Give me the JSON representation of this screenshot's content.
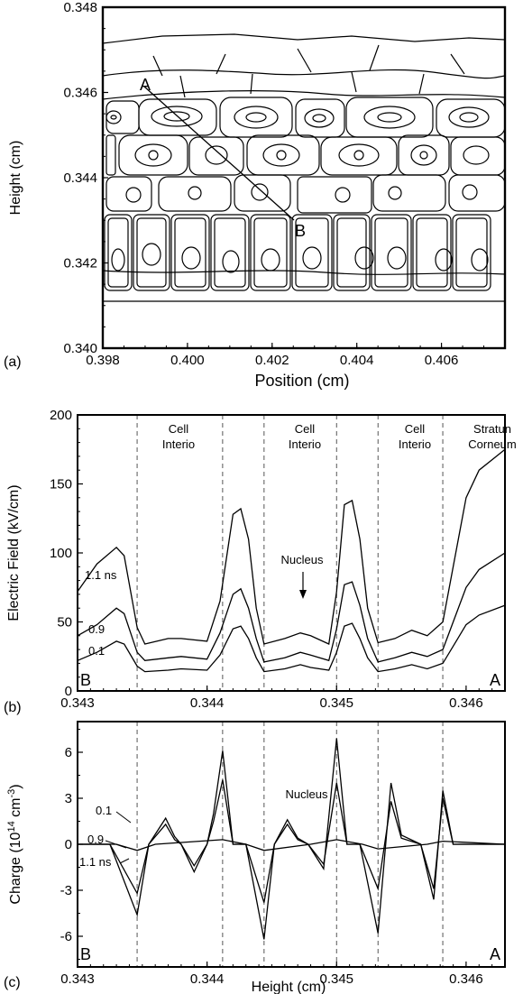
{
  "panel_a": {
    "label": "(a)",
    "xlabel": "Position (cm)",
    "ylabel": "Height (cm)",
    "xticks": [
      "0.398",
      "0.400",
      "0.402",
      "0.404",
      "0.406"
    ],
    "yticks": [
      "0.340",
      "0.342",
      "0.344",
      "0.346",
      "0.348"
    ],
    "point_a": "A",
    "point_b": "B"
  },
  "panel_b": {
    "label": "(b)",
    "ylabel": "Electric Field (kV/cm)",
    "xticks": [
      "0.343",
      "0.344",
      "0.345",
      "0.346"
    ],
    "yticks": [
      "0",
      "50",
      "100",
      "150",
      "200"
    ],
    "regions": [
      {
        "line1": "Cell",
        "line2": "Interio"
      },
      {
        "line1": "Cell",
        "line2": "Interio"
      },
      {
        "line1": "Cell",
        "line2": "Interio"
      },
      {
        "line1": "Stratun",
        "line2": "Corneum"
      }
    ],
    "series_labels": [
      "1.1 ns",
      "0.9",
      "0.1"
    ],
    "nucleus_label": "Nucleus",
    "corner_left": "B",
    "corner_right": "A"
  },
  "panel_c": {
    "label": "(c)",
    "xlabel": "Height (cm)",
    "ylabel": "Charge (10",
    "ylabel_sup1": "14",
    "ylabel_mid": " cm",
    "ylabel_sup2": "-3",
    "ylabel_end": ")",
    "xticks": [
      "0.343",
      "0.344",
      "0.345",
      "0.346"
    ],
    "yticks": [
      "-6",
      "-3",
      "0",
      "3",
      "6"
    ],
    "series_labels": [
      "0.1",
      "0.9",
      "1.1 ns"
    ],
    "nucleus_label": "Nucleus",
    "corner_left": "B",
    "corner_right": "A"
  },
  "chart_data": [
    {
      "type": "diagram",
      "panel": "a",
      "xlabel": "Position (cm)",
      "ylabel": "Height (cm)",
      "xlim": [
        0.398,
        0.4075
      ],
      "ylim": [
        0.34,
        0.348
      ],
      "line_AB": {
        "x": [
          0.3991,
          0.4025
        ],
        "y": [
          0.3458,
          0.3437
        ]
      }
    },
    {
      "type": "line",
      "panel": "b",
      "xlabel": "",
      "ylabel": "Electric Field (kV/cm)",
      "xlim": [
        0.343,
        0.3463
      ],
      "ylim": [
        0,
        200
      ],
      "boundaries": [
        0.34346,
        0.34412,
        0.34444,
        0.345,
        0.34532,
        0.34582
      ],
      "series": [
        {
          "name": "1.1 ns",
          "x": [
            0.343,
            0.34315,
            0.3433,
            0.34336,
            0.34346,
            0.34352,
            0.3437,
            0.3438,
            0.344,
            0.3441,
            0.3442,
            0.34426,
            0.34432,
            0.34438,
            0.34444,
            0.3446,
            0.34472,
            0.3448,
            0.34494,
            0.345,
            0.34506,
            0.34512,
            0.34518,
            0.34524,
            0.34532,
            0.34545,
            0.34558,
            0.3457,
            0.34582,
            0.346,
            0.3461,
            0.3463
          ],
          "y": [
            72,
            92,
            104,
            98,
            46,
            34,
            38,
            38,
            36,
            65,
            128,
            132,
            110,
            60,
            34,
            38,
            42,
            40,
            34,
            72,
            135,
            138,
            110,
            60,
            35,
            38,
            44,
            40,
            50,
            140,
            160,
            175
          ]
        },
        {
          "name": "0.9",
          "x": [
            0.343,
            0.34315,
            0.3433,
            0.34336,
            0.34346,
            0.34352,
            0.3437,
            0.3438,
            0.344,
            0.3441,
            0.3442,
            0.34426,
            0.34432,
            0.34438,
            0.34444,
            0.3446,
            0.34472,
            0.3448,
            0.34494,
            0.345,
            0.34506,
            0.34512,
            0.34518,
            0.34524,
            0.34532,
            0.34545,
            0.34558,
            0.3457,
            0.34582,
            0.346,
            0.3461,
            0.3463
          ],
          "y": [
            40,
            48,
            60,
            56,
            28,
            22,
            24,
            25,
            23,
            42,
            70,
            74,
            60,
            38,
            21,
            24,
            28,
            26,
            22,
            45,
            77,
            79,
            62,
            38,
            21,
            24,
            28,
            25,
            30,
            75,
            88,
            100
          ]
        },
        {
          "name": "0.1",
          "x": [
            0.343,
            0.34315,
            0.3433,
            0.34336,
            0.34346,
            0.34352,
            0.3437,
            0.3438,
            0.344,
            0.3441,
            0.3442,
            0.34426,
            0.34432,
            0.34438,
            0.34444,
            0.3446,
            0.34472,
            0.3448,
            0.34494,
            0.345,
            0.34506,
            0.34512,
            0.34518,
            0.34524,
            0.34532,
            0.34545,
            0.34558,
            0.3457,
            0.34582,
            0.346,
            0.3461,
            0.3463
          ],
          "y": [
            22,
            28,
            36,
            34,
            18,
            14,
            15,
            16,
            15,
            26,
            45,
            47,
            38,
            24,
            14,
            16,
            19,
            17,
            15,
            28,
            47,
            49,
            38,
            24,
            14,
            16,
            19,
            16,
            20,
            48,
            55,
            62
          ]
        }
      ]
    },
    {
      "type": "line",
      "panel": "c",
      "xlabel": "Height (cm)",
      "ylabel": "Charge (10^14 cm^-3)",
      "xlim": [
        0.343,
        0.3463
      ],
      "ylim": [
        -8,
        8
      ],
      "boundaries": [
        0.34346,
        0.34412,
        0.34444,
        0.345,
        0.34532,
        0.34582
      ],
      "series": [
        {
          "name": "0.1",
          "x": [
            0.343,
            0.3433,
            0.34346,
            0.3436,
            0.34412,
            0.3443,
            0.34444,
            0.3448,
            0.345,
            0.3452,
            0.34532,
            0.3457,
            0.34582,
            0.3463
          ],
          "y": [
            0,
            0,
            -0.4,
            0,
            0.3,
            0,
            -0.4,
            0,
            0.3,
            0,
            -0.3,
            0,
            0.2,
            0
          ]
        },
        {
          "name": "0.9",
          "x": [
            0.343,
            0.34325,
            0.34346,
            0.34355,
            0.34368,
            0.34375,
            0.3438,
            0.3439,
            0.344,
            0.34405,
            0.34412,
            0.3442,
            0.3443,
            0.34444,
            0.34452,
            0.34462,
            0.3447,
            0.34478,
            0.3449,
            0.345,
            0.34508,
            0.34518,
            0.34532,
            0.34542,
            0.3455,
            0.34565,
            0.34575,
            0.34582,
            0.3459,
            0.3463
          ],
          "y": [
            0,
            0,
            -3.2,
            0,
            1.3,
            0.3,
            0,
            -1.4,
            0,
            1.5,
            4.2,
            0,
            0,
            -3.8,
            0,
            1.3,
            0.3,
            0,
            -1.3,
            4.0,
            0,
            0,
            -2.9,
            2.8,
            0.4,
            0,
            -2.9,
            3.0,
            0,
            0
          ]
        },
        {
          "name": "1.1 ns",
          "x": [
            0.343,
            0.34325,
            0.34346,
            0.34355,
            0.34368,
            0.34375,
            0.3438,
            0.3439,
            0.344,
            0.34405,
            0.34412,
            0.3442,
            0.3443,
            0.34444,
            0.34452,
            0.34462,
            0.3447,
            0.34478,
            0.3449,
            0.345,
            0.34508,
            0.34518,
            0.34532,
            0.34542,
            0.3455,
            0.34565,
            0.34575,
            0.34582,
            0.3459,
            0.3463
          ],
          "y": [
            0,
            0,
            -4.6,
            0,
            1.7,
            0.5,
            0,
            -1.8,
            0,
            2.0,
            6.1,
            0,
            0,
            -6.2,
            0,
            1.6,
            0.4,
            0,
            -1.6,
            6.9,
            0,
            0,
            -5.8,
            4.0,
            0.6,
            0,
            -3.6,
            3.5,
            0,
            0
          ]
        }
      ]
    }
  ]
}
